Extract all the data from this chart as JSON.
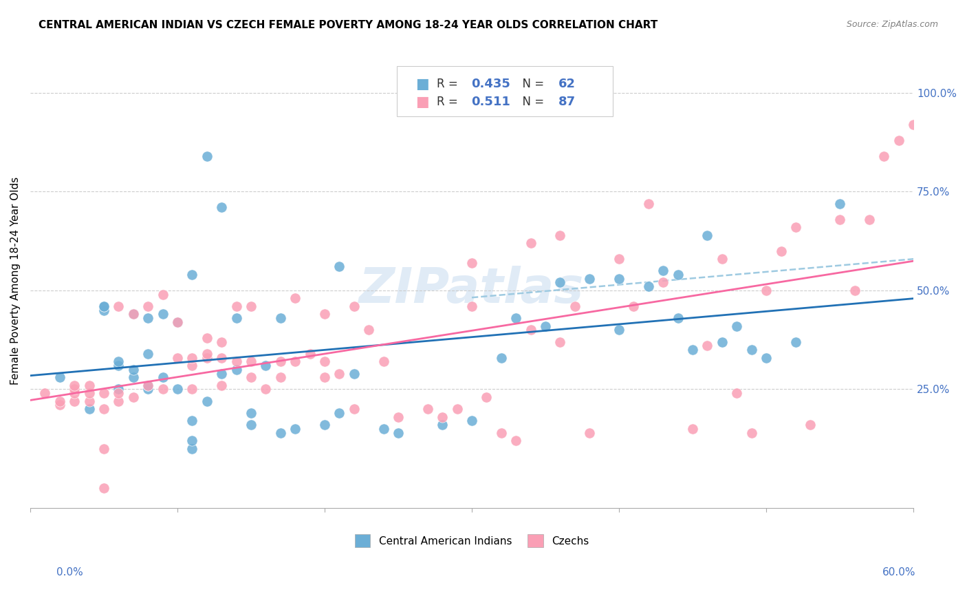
{
  "title": "CENTRAL AMERICAN INDIAN VS CZECH FEMALE POVERTY AMONG 18-24 YEAR OLDS CORRELATION CHART",
  "source": "Source: ZipAtlas.com",
  "ylabel": "Female Poverty Among 18-24 Year Olds",
  "xlim": [
    0.0,
    0.6
  ],
  "ylim": [
    -0.05,
    1.1
  ],
  "watermark": "ZIPatlas",
  "blue_color": "#6baed6",
  "pink_color": "#fa9fb5",
  "blue_line_color": "#2171b5",
  "pink_line_color": "#f768a1",
  "dashed_line_color": "#9ecae1",
  "legend_blue_label": "Central American Indians",
  "legend_pink_label": "Czechs",
  "R_blue": "0.435",
  "N_blue": "62",
  "R_pink": "0.511",
  "N_pink": "87",
  "blue_scatter_x": [
    0.02,
    0.04,
    0.05,
    0.05,
    0.05,
    0.06,
    0.06,
    0.06,
    0.07,
    0.07,
    0.07,
    0.08,
    0.08,
    0.08,
    0.08,
    0.09,
    0.09,
    0.1,
    0.1,
    0.11,
    0.11,
    0.11,
    0.11,
    0.12,
    0.12,
    0.13,
    0.13,
    0.14,
    0.14,
    0.15,
    0.15,
    0.16,
    0.17,
    0.17,
    0.18,
    0.2,
    0.21,
    0.21,
    0.22,
    0.24,
    0.25,
    0.28,
    0.3,
    0.32,
    0.33,
    0.35,
    0.36,
    0.38,
    0.4,
    0.4,
    0.42,
    0.43,
    0.44,
    0.44,
    0.45,
    0.46,
    0.47,
    0.48,
    0.49,
    0.5,
    0.52,
    0.55
  ],
  "blue_scatter_y": [
    0.28,
    0.2,
    0.45,
    0.46,
    0.46,
    0.25,
    0.31,
    0.32,
    0.28,
    0.3,
    0.44,
    0.25,
    0.26,
    0.34,
    0.43,
    0.28,
    0.44,
    0.25,
    0.42,
    0.1,
    0.12,
    0.17,
    0.54,
    0.22,
    0.84,
    0.71,
    0.29,
    0.3,
    0.43,
    0.16,
    0.19,
    0.31,
    0.14,
    0.43,
    0.15,
    0.16,
    0.19,
    0.56,
    0.29,
    0.15,
    0.14,
    0.16,
    0.17,
    0.33,
    0.43,
    0.41,
    0.52,
    0.53,
    0.53,
    0.4,
    0.51,
    0.55,
    0.43,
    0.54,
    0.35,
    0.64,
    0.37,
    0.41,
    0.35,
    0.33,
    0.37,
    0.72
  ],
  "pink_scatter_x": [
    0.01,
    0.02,
    0.02,
    0.03,
    0.03,
    0.03,
    0.03,
    0.04,
    0.04,
    0.04,
    0.05,
    0.05,
    0.05,
    0.05,
    0.06,
    0.06,
    0.06,
    0.07,
    0.07,
    0.08,
    0.08,
    0.09,
    0.09,
    0.1,
    0.1,
    0.11,
    0.11,
    0.11,
    0.12,
    0.12,
    0.12,
    0.13,
    0.13,
    0.13,
    0.14,
    0.14,
    0.15,
    0.15,
    0.15,
    0.16,
    0.17,
    0.17,
    0.18,
    0.18,
    0.19,
    0.2,
    0.2,
    0.2,
    0.21,
    0.22,
    0.22,
    0.23,
    0.24,
    0.25,
    0.27,
    0.28,
    0.29,
    0.3,
    0.3,
    0.31,
    0.32,
    0.33,
    0.34,
    0.34,
    0.36,
    0.36,
    0.37,
    0.38,
    0.4,
    0.41,
    0.42,
    0.43,
    0.45,
    0.46,
    0.47,
    0.48,
    0.49,
    0.5,
    0.51,
    0.52,
    0.53,
    0.55,
    0.56,
    0.57,
    0.58,
    0.59,
    0.6
  ],
  "pink_scatter_y": [
    0.24,
    0.21,
    0.22,
    0.22,
    0.24,
    0.25,
    0.26,
    0.22,
    0.24,
    0.26,
    0.0,
    0.1,
    0.2,
    0.24,
    0.22,
    0.24,
    0.46,
    0.23,
    0.44,
    0.26,
    0.46,
    0.25,
    0.49,
    0.33,
    0.42,
    0.25,
    0.31,
    0.33,
    0.33,
    0.34,
    0.38,
    0.26,
    0.33,
    0.37,
    0.32,
    0.46,
    0.28,
    0.32,
    0.46,
    0.25,
    0.28,
    0.32,
    0.32,
    0.48,
    0.34,
    0.28,
    0.32,
    0.44,
    0.29,
    0.2,
    0.46,
    0.4,
    0.32,
    0.18,
    0.2,
    0.18,
    0.2,
    0.46,
    0.57,
    0.23,
    0.14,
    0.12,
    0.4,
    0.62,
    0.37,
    0.64,
    0.46,
    0.14,
    0.58,
    0.46,
    0.72,
    0.52,
    0.15,
    0.36,
    0.58,
    0.24,
    0.14,
    0.5,
    0.6,
    0.66,
    0.16,
    0.68,
    0.5,
    0.68,
    0.84,
    0.88,
    0.92
  ]
}
